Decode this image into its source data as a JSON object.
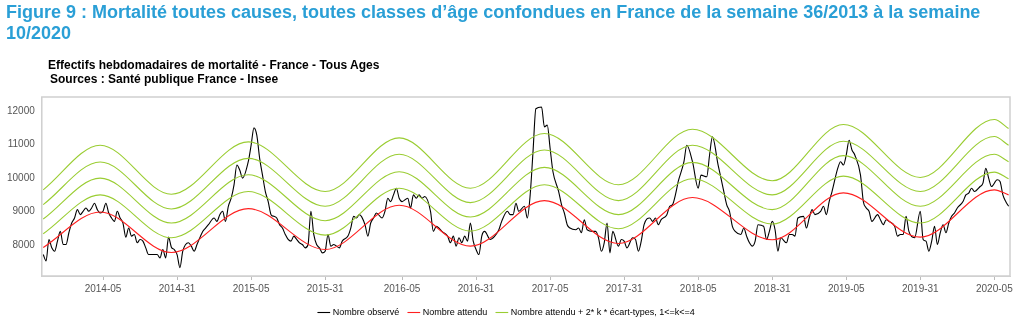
{
  "chart_data": {
    "type": "line",
    "title": "Figure 9 : Mortalité toutes causes, toutes classes d’âge confondues en France de la semaine 36/2013 à la semaine 10/2020",
    "subtitle": "Effectifs hebdomadaires de mortalité  - France - Tous Ages",
    "annotations": [
      "Sources : Santé publique France - Insee"
    ],
    "categories": [
      null,
      null,
      null,
      null,
      null,
      null,
      null,
      null,
      null,
      null,
      null,
      null,
      null,
      null,
      null,
      null,
      null,
      null,
      null,
      null,
      null,
      "2014-05",
      null,
      null,
      null,
      null,
      null,
      null,
      null,
      null,
      null,
      null,
      null,
      null,
      null,
      null,
      null,
      null,
      null,
      null,
      null,
      null,
      null,
      null,
      null,
      null,
      null,
      "2014-31",
      null,
      null,
      null,
      null,
      null,
      null,
      null,
      null,
      null,
      null,
      null,
      null,
      null,
      null,
      null,
      null,
      null,
      null,
      null,
      null,
      null,
      null,
      null,
      null,
      null,
      "2015-05",
      null,
      null,
      null,
      null,
      null,
      null,
      null,
      null,
      null,
      null,
      null,
      null,
      null,
      null,
      null,
      null,
      null,
      null,
      null,
      null,
      null,
      null,
      null,
      null,
      null,
      "2015-31",
      null,
      null,
      null,
      null,
      null,
      null,
      null,
      null,
      null,
      null,
      null,
      null,
      null,
      null,
      null,
      null,
      null,
      null,
      null,
      null,
      null,
      null,
      null,
      null,
      null,
      null,
      "2016-05",
      null,
      null,
      null,
      null,
      null,
      null,
      null,
      null,
      null,
      null,
      null,
      null,
      null,
      null,
      null,
      null,
      null,
      null,
      null,
      null,
      null,
      null,
      null,
      null,
      null,
      "2016-31",
      null,
      null,
      null,
      null,
      null,
      null,
      null,
      null,
      null,
      null,
      null,
      null,
      null,
      null,
      null,
      null,
      null,
      null,
      null,
      null,
      null,
      null,
      null,
      null,
      null,
      "2017-05",
      null,
      null,
      null,
      null,
      null,
      null,
      null,
      null,
      null,
      null,
      null,
      null,
      null,
      null,
      null,
      null,
      null,
      null,
      null,
      null,
      null,
      null,
      null,
      null,
      null,
      "2017-31",
      null,
      null,
      null,
      null,
      null,
      null,
      null,
      null,
      null,
      null,
      null,
      null,
      null,
      null,
      null,
      null,
      null,
      null,
      null,
      null,
      null,
      null,
      null,
      null,
      null,
      "2018-05",
      null,
      null,
      null,
      null,
      null,
      null,
      null,
      null,
      null,
      null,
      null,
      null,
      null,
      null,
      null,
      null,
      null,
      null,
      null,
      null,
      null,
      null,
      null,
      null,
      null,
      "2018-31",
      null,
      null,
      null,
      null,
      null,
      null,
      null,
      null,
      null,
      null,
      null,
      null,
      null,
      null,
      null,
      null,
      null,
      null,
      null,
      null,
      null,
      null,
      null,
      null,
      null,
      "2019-05",
      null,
      null,
      null,
      null,
      null,
      null,
      null,
      null,
      null,
      null,
      null,
      null,
      null,
      null,
      null,
      null,
      null,
      null,
      null,
      null,
      null,
      null,
      null,
      null,
      null,
      "2019-31",
      null,
      null,
      null,
      null,
      null,
      null,
      null,
      null,
      null,
      null,
      null,
      null,
      null,
      null,
      null,
      null,
      null,
      null,
      null,
      null,
      null,
      null,
      null,
      null,
      null,
      "2020-05",
      null,
      null,
      null,
      null,
      null
    ],
    "ylim": [
      7080,
      12420
    ],
    "yticks": [
      8000,
      9000,
      10000,
      11000,
      12000
    ],
    "grid": false,
    "legend": "bottom",
    "marker": "none",
    "line_style": "solid",
    "series": [
      {
        "name": "Nombre observé",
        "color": "#000000",
        "values": [
          7720,
          7530,
          8170,
          7920,
          7820,
          8120,
          8410,
          8020,
          8020,
          8370,
          8660,
          8810,
          9060,
          8910,
          9010,
          9110,
          9010,
          9110,
          9250,
          9060,
          8960,
          9010,
          9250,
          8960,
          8810,
          8710,
          9010,
          8810,
          8660,
          8240,
          8510,
          8270,
          8320,
          8070,
          8170,
          8120,
          7920,
          7720,
          null,
          7720,
          7720,
          7620,
          7870,
          7620,
          8240,
          7940,
          7870,
          7720,
          7330,
          7820,
          null,
          8070,
          7970,
          7820,
          8020,
          8220,
          8410,
          8510,
          8610,
          null,
          8810,
          8710,
          8910,
          9010,
          8710,
          9160,
          9400,
          9800,
          10390,
          10240,
          10000,
          null,
          10490,
          10980,
          11500,
          11280,
          10590,
          10090,
          9600,
          9300,
          8910,
          8860,
          8810,
          8610,
          8510,
          8320,
          8170,
          8120,
          8270,
          8170,
          8070,
          8020,
          7920,
          8020,
          9010,
          8320,
          8020,
          7920,
          7770,
          7820,
          8320,
          7970,
          8020,
          null,
          7920,
          8120,
          null,
          8270,
          8510,
          8860,
          8810,
          8910,
          null,
          8610,
          8270,
          8660,
          8810,
          8960,
          null,
          8810,
          9010,
          9400,
          9300,
          9500,
          9700,
          9400,
          9300,
          null,
          9400,
          9110,
          9500,
          9400,
          9500,
          9400,
          9450,
          null,
          9010,
          8410,
          8560,
          8510,
          8410,
          null,
          8270,
          8070,
          8270,
          7970,
          8220,
          8070,
          8270,
          8120,
          8660,
          8120,
          7870,
          7720,
          8270,
          8410,
          null,
          8170,
          8220,
          8320,
          8460,
          8710,
          null,
          9010,
          8910,
          8910,
          9250,
          9010,
          null,
          9160,
          8810,
          9500,
          10790,
          12070,
          null,
          12120,
          11530,
          11580,
          10890,
          10190,
          null,
          9600,
          9210,
          8960,
          8610,
          8510,
          null,
          8460,
          8510,
          8370,
          8760,
          8460,
          null,
          8410,
          8410,
          8220,
          7820,
          8070,
          8660,
          7770,
          8410,
          null,
          7970,
          8170,
          8120,
          7920,
          null,
          8220,
          8170,
          7820,
          8120,
          8610,
          null,
          8810,
          8710,
          8810,
          8610,
          8760,
          null,
          8910,
          9160,
          9210,
          9500,
          9900,
          null,
          10490,
          10980,
          null,
          10490,
          null,
          9700,
          10090,
          null,
          10040,
          10690,
          11230,
          null,
          10390,
          10000,
          9600,
          9210,
          9010,
          8560,
          8410,
          null,
          8320,
          8510,
          8270,
          8070,
          7970,
          8120,
          8610,
          null,
          8560,
          8170,
          8410,
          8710,
          8460,
          7820,
          8220,
          null,
          8070,
          8320,
          8320,
          8270,
          8810,
          null,
          8860,
          8510,
          8810,
          9060,
          8910,
          null,
          9010,
          9160,
          8910,
          9300,
          9600,
          null,
          10290,
          10490,
          10390,
          10690,
          11130,
          10840,
          10690,
          null,
          10090,
          9300,
          9110,
          9010,
          8710,
          null,
          8910,
          8760,
          8610,
          8760,
          8710,
          null,
          8560,
          8270,
          8320,
          8320,
          8860,
          8410,
          null,
          8220,
          null,
          9010,
          8170,
          8120,
          7820,
          8120,
          8560,
          8020,
          8370,
          8610,
          8370,
          8660,
          8860,
          8960,
          9110,
          null,
          9300,
          9500,
          9550,
          9700,
          9600,
          null,
          9750,
          9850,
          10290,
          10000,
          9750,
          null,
          9950,
          9900,
          9500,
          9300,
          9160
        ]
      },
      {
        "name": "Nombre attendu",
        "color": "#ff2020",
        "values": [
          7930,
          null,
          null,
          null,
          null,
          null,
          null,
          null,
          null,
          null,
          null,
          null,
          null,
          null,
          null,
          null,
          null,
          null,
          null,
          null,
          8990,
          null,
          null,
          null,
          null,
          null,
          null,
          null,
          null,
          null,
          null,
          null,
          null,
          null,
          null,
          null,
          null,
          null,
          null,
          null,
          null,
          null,
          null,
          null,
          null,
          7780,
          null,
          null,
          null,
          null,
          null,
          null,
          null,
          null,
          null,
          null,
          null,
          null,
          null,
          null,
          null,
          null,
          null,
          null,
          null,
          null,
          null,
          null,
          null,
          null,
          null,
          null,
          9090,
          null,
          null,
          null,
          null,
          null,
          null,
          null,
          null,
          null,
          null,
          null,
          null,
          null,
          null,
          null,
          null,
          null,
          null,
          null,
          null,
          null,
          null,
          null,
          null,
          null,
          null,
          7870,
          null,
          null,
          null,
          null,
          null,
          null,
          null,
          null,
          null,
          null,
          null,
          null,
          null,
          null,
          null,
          null,
          null,
          null,
          null,
          null,
          null,
          null,
          null,
          null,
          null,
          9190,
          null,
          null,
          null,
          null,
          null,
          null,
          null,
          null,
          null,
          null,
          null,
          null,
          null,
          null,
          null,
          null,
          null,
          null,
          null,
          null,
          null,
          null,
          null,
          null,
          7970,
          null,
          null,
          null,
          null,
          null,
          null,
          null,
          null,
          null,
          null,
          null,
          null,
          null,
          null,
          null,
          null,
          null,
          null,
          null,
          null,
          null,
          null,
          null,
          null,
          null,
          9330,
          null,
          null,
          null,
          null,
          null,
          null,
          null,
          null,
          null,
          null,
          null,
          null,
          null,
          null,
          null,
          null,
          null,
          null,
          null,
          null,
          null,
          null,
          null,
          null,
          null,
          8050,
          null,
          null,
          null,
          null,
          null,
          null,
          null,
          null,
          null,
          null,
          null,
          null,
          null,
          null,
          null,
          null,
          null,
          null,
          null,
          null,
          null,
          null,
          null,
          null,
          null,
          9420,
          null,
          null,
          null,
          null,
          null,
          null,
          null,
          null,
          null,
          null,
          null,
          null,
          null,
          null,
          null,
          null,
          null,
          null,
          null,
          null,
          null,
          null,
          null,
          null,
          null,
          null,
          null,
          8160,
          null,
          null,
          null,
          null,
          null,
          null,
          null,
          null,
          null,
          null,
          null,
          null,
          null,
          null,
          null,
          null,
          null,
          null,
          null,
          null,
          null,
          null,
          null,
          null,
          9560,
          null,
          null,
          null,
          null,
          null,
          null,
          null,
          null,
          null,
          null,
          null,
          null,
          null,
          null,
          null,
          null,
          null,
          null,
          null,
          null,
          null,
          null,
          null,
          null,
          null,
          null,
          8240,
          null,
          null,
          null,
          null,
          null,
          null,
          null,
          null,
          null,
          null,
          null,
          null,
          null,
          null,
          null,
          null,
          null,
          null,
          null,
          null,
          null,
          null,
          null,
          null,
          null,
          9650,
          null,
          null,
          null,
          null,
          9500
        ]
      },
      {
        "name": "Nombre attendu + 2* k * écart-types, 1<=k<=4",
        "color": "#9acd32",
        "values": [
          8340,
          null,
          null,
          null,
          null,
          null,
          null,
          null,
          null,
          null,
          null,
          null,
          null,
          null,
          null,
          null,
          null,
          null,
          null,
          null,
          9500,
          null,
          null,
          null,
          null,
          null,
          null,
          null,
          null,
          null,
          null,
          null,
          null,
          null,
          null,
          null,
          null,
          null,
          null,
          null,
          null,
          null,
          null,
          null,
          null,
          8220,
          null,
          null,
          null,
          null,
          null,
          null,
          null,
          null,
          null,
          null,
          null,
          null,
          null,
          null,
          null,
          null,
          null,
          null,
          null,
          null,
          null,
          null,
          null,
          null,
          null,
          null,
          9600,
          null,
          null,
          null,
          null,
          null,
          null,
          null,
          null,
          null,
          null,
          null,
          null,
          null,
          null,
          null,
          null,
          null,
          null,
          null,
          null,
          null,
          null,
          null,
          null,
          null,
          null,
          8300,
          null,
          null,
          null,
          null,
          null,
          null,
          null,
          null,
          null,
          null,
          null,
          null,
          null,
          null,
          null,
          null,
          null,
          null,
          null,
          null,
          null,
          null,
          null,
          null,
          null,
          9700,
          null,
          null,
          null,
          null,
          null,
          null,
          null,
          null,
          null,
          null,
          null,
          null,
          null,
          null,
          null,
          null,
          null,
          null,
          null,
          null,
          null,
          null,
          null,
          null,
          8420,
          null,
          null,
          null,
          null,
          null,
          null,
          null,
          null,
          null,
          null,
          null,
          null,
          null,
          null,
          null,
          null,
          null,
          null,
          null,
          null,
          null,
          null,
          null,
          null,
          null,
          9800,
          null,
          null,
          null,
          null,
          null,
          null,
          null,
          null,
          null,
          null,
          null,
          null,
          null,
          null,
          null,
          null,
          null,
          null,
          null,
          null,
          null,
          null,
          null,
          null,
          null,
          8490,
          null,
          null,
          null,
          null,
          null,
          null,
          null,
          null,
          null,
          null,
          null,
          null,
          null,
          null,
          null,
          null,
          null,
          null,
          null,
          null,
          null,
          null,
          null,
          null,
          null,
          9980,
          null,
          null,
          null,
          null,
          null,
          null,
          null,
          null,
          null,
          null,
          null,
          null,
          null,
          null,
          null,
          null,
          null,
          null,
          null,
          null,
          null,
          null,
          null,
          null,
          null,
          null,
          null,
          8630,
          null,
          null,
          null,
          null,
          null,
          null,
          null,
          null,
          null,
          null,
          null,
          null,
          null,
          null,
          null,
          null,
          null,
          null,
          null,
          null,
          null,
          null,
          null,
          null,
          10060,
          null,
          null,
          null,
          null,
          null,
          null,
          null,
          null,
          null,
          null,
          null,
          null,
          null,
          null,
          null,
          null,
          null,
          null,
          null,
          null,
          null,
          null,
          null,
          null,
          null,
          null,
          8660,
          null,
          null,
          null,
          null,
          null,
          null,
          null,
          null,
          null,
          null,
          null,
          null,
          null,
          null,
          null,
          null,
          null,
          null,
          null,
          null,
          null,
          null,
          null,
          null,
          null,
          10180,
          null,
          null,
          null,
          null,
          9980
        ]
      },
      {
        "color": "#9acd32",
        "values": [
          8780,
          null,
          null,
          null,
          null,
          null,
          null,
          null,
          null,
          null,
          null,
          null,
          null,
          null,
          null,
          null,
          null,
          null,
          null,
          null,
          10000,
          null,
          null,
          null,
          null,
          null,
          null,
          null,
          null,
          null,
          null,
          null,
          null,
          null,
          null,
          null,
          null,
          null,
          null,
          null,
          null,
          null,
          null,
          null,
          null,
          8660,
          null,
          null,
          null,
          null,
          null,
          null,
          null,
          null,
          null,
          null,
          null,
          null,
          null,
          null,
          null,
          null,
          null,
          null,
          null,
          null,
          null,
          null,
          null,
          null,
          null,
          null,
          10100,
          null,
          null,
          null,
          null,
          null,
          null,
          null,
          null,
          null,
          null,
          null,
          null,
          null,
          null,
          null,
          null,
          null,
          null,
          null,
          null,
          null,
          null,
          null,
          null,
          null,
          null,
          8730,
          null,
          null,
          null,
          null,
          null,
          null,
          null,
          null,
          null,
          null,
          null,
          null,
          null,
          null,
          null,
          null,
          null,
          null,
          null,
          null,
          null,
          null,
          null,
          null,
          null,
          10190,
          null,
          null,
          null,
          null,
          null,
          null,
          null,
          null,
          null,
          null,
          null,
          null,
          null,
          null,
          null,
          null,
          null,
          null,
          null,
          null,
          null,
          null,
          null,
          null,
          8840,
          null,
          null,
          null,
          null,
          null,
          null,
          null,
          null,
          null,
          null,
          null,
          null,
          null,
          null,
          null,
          null,
          null,
          null,
          null,
          null,
          null,
          null,
          null,
          null,
          null,
          10320,
          null,
          null,
          null,
          null,
          null,
          null,
          null,
          null,
          null,
          null,
          null,
          null,
          null,
          null,
          null,
          null,
          null,
          null,
          null,
          null,
          null,
          null,
          null,
          null,
          null,
          8910,
          null,
          null,
          null,
          null,
          null,
          null,
          null,
          null,
          null,
          null,
          null,
          null,
          null,
          null,
          null,
          null,
          null,
          null,
          null,
          null,
          null,
          null,
          null,
          null,
          null,
          10470,
          null,
          null,
          null,
          null,
          null,
          null,
          null,
          null,
          null,
          null,
          null,
          null,
          null,
          null,
          null,
          null,
          null,
          null,
          null,
          null,
          null,
          null,
          null,
          null,
          null,
          null,
          null,
          9060,
          null,
          null,
          null,
          null,
          null,
          null,
          null,
          null,
          null,
          null,
          null,
          null,
          null,
          null,
          null,
          null,
          null,
          null,
          null,
          null,
          null,
          null,
          null,
          null,
          10670,
          null,
          null,
          null,
          null,
          null,
          null,
          null,
          null,
          null,
          null,
          null,
          null,
          null,
          null,
          null,
          null,
          null,
          null,
          null,
          null,
          null,
          null,
          null,
          null,
          null,
          null,
          9160,
          null,
          null,
          null,
          null,
          null,
          null,
          null,
          null,
          null,
          null,
          null,
          null,
          null,
          null,
          null,
          null,
          null,
          null,
          null,
          null,
          null,
          null,
          null,
          null,
          null,
          10710,
          null,
          null,
          null,
          null,
          10490
        ]
      },
      {
        "color": "#9acd32",
        "values": [
          9210,
          null,
          null,
          null,
          null,
          null,
          null,
          null,
          null,
          null,
          null,
          null,
          null,
          null,
          null,
          null,
          null,
          null,
          null,
          null,
          10480,
          null,
          null,
          null,
          null,
          null,
          null,
          null,
          null,
          null,
          null,
          null,
          null,
          null,
          null,
          null,
          null,
          null,
          null,
          null,
          null,
          null,
          null,
          null,
          null,
          9080,
          null,
          null,
          null,
          null,
          null,
          null,
          null,
          null,
          null,
          null,
          null,
          null,
          null,
          null,
          null,
          null,
          null,
          null,
          null,
          null,
          null,
          null,
          null,
          null,
          null,
          null,
          10590,
          null,
          null,
          null,
          null,
          null,
          null,
          null,
          null,
          null,
          null,
          null,
          null,
          null,
          null,
          null,
          null,
          null,
          null,
          null,
          null,
          null,
          null,
          null,
          null,
          null,
          null,
          9160,
          null,
          null,
          null,
          null,
          null,
          null,
          null,
          null,
          null,
          null,
          null,
          null,
          null,
          null,
          null,
          null,
          null,
          null,
          null,
          null,
          null,
          null,
          null,
          null,
          null,
          10710,
          null,
          null,
          null,
          null,
          null,
          null,
          null,
          null,
          null,
          null,
          null,
          null,
          null,
          null,
          null,
          null,
          null,
          null,
          null,
          null,
          null,
          null,
          null,
          null,
          9270,
          null,
          null,
          null,
          null,
          null,
          null,
          null,
          null,
          null,
          null,
          null,
          null,
          null,
          null,
          null,
          null,
          null,
          null,
          null,
          null,
          null,
          null,
          null,
          null,
          null,
          10840,
          null,
          null,
          null,
          null,
          null,
          null,
          null,
          null,
          null,
          null,
          null,
          null,
          null,
          null,
          null,
          null,
          null,
          null,
          null,
          null,
          null,
          null,
          null,
          null,
          null,
          9330,
          null,
          null,
          null,
          null,
          null,
          null,
          null,
          null,
          null,
          null,
          null,
          null,
          null,
          null,
          null,
          null,
          null,
          null,
          null,
          null,
          null,
          null,
          null,
          null,
          null,
          10980,
          null,
          null,
          null,
          null,
          null,
          null,
          null,
          null,
          null,
          null,
          null,
          null,
          null,
          null,
          null,
          null,
          null,
          null,
          null,
          null,
          null,
          null,
          null,
          null,
          null,
          null,
          null,
          9500,
          null,
          null,
          null,
          null,
          null,
          null,
          null,
          null,
          null,
          null,
          null,
          null,
          null,
          null,
          null,
          null,
          null,
          null,
          null,
          null,
          null,
          null,
          null,
          null,
          11100,
          null,
          null,
          null,
          null,
          null,
          null,
          null,
          null,
          null,
          null,
          null,
          null,
          null,
          null,
          null,
          null,
          null,
          null,
          null,
          null,
          null,
          null,
          null,
          null,
          null,
          null,
          9600,
          null,
          null,
          null,
          null,
          null,
          null,
          null,
          null,
          null,
          null,
          null,
          null,
          null,
          null,
          null,
          null,
          null,
          null,
          null,
          null,
          null,
          null,
          null,
          null,
          null,
          11240,
          null,
          null,
          null,
          null,
          10980
        ]
      },
      {
        "color": "#9acd32",
        "values": [
          9650,
          null,
          null,
          null,
          null,
          null,
          null,
          null,
          null,
          null,
          null,
          null,
          null,
          null,
          null,
          null,
          null,
          null,
          null,
          null,
          10980,
          null,
          null,
          null,
          null,
          null,
          null,
          null,
          null,
          null,
          null,
          null,
          null,
          null,
          null,
          null,
          null,
          null,
          null,
          null,
          null,
          null,
          null,
          null,
          null,
          9520,
          null,
          null,
          null,
          null,
          null,
          null,
          null,
          null,
          null,
          null,
          null,
          null,
          null,
          null,
          null,
          null,
          null,
          null,
          null,
          null,
          null,
          null,
          null,
          null,
          null,
          null,
          11080,
          null,
          null,
          null,
          null,
          null,
          null,
          null,
          null,
          null,
          null,
          null,
          null,
          null,
          null,
          null,
          null,
          null,
          null,
          null,
          null,
          null,
          null,
          null,
          null,
          null,
          null,
          9600,
          null,
          null,
          null,
          null,
          null,
          null,
          null,
          null,
          null,
          null,
          null,
          null,
          null,
          null,
          null,
          null,
          null,
          null,
          null,
          null,
          null,
          null,
          null,
          null,
          null,
          11200,
          null,
          null,
          null,
          null,
          null,
          null,
          null,
          null,
          null,
          null,
          null,
          null,
          null,
          null,
          null,
          null,
          null,
          null,
          null,
          null,
          null,
          null,
          null,
          null,
          9700,
          null,
          null,
          null,
          null,
          null,
          null,
          null,
          null,
          null,
          null,
          null,
          null,
          null,
          null,
          null,
          null,
          null,
          null,
          null,
          null,
          null,
          null,
          null,
          null,
          null,
          11330,
          null,
          null,
          null,
          null,
          null,
          null,
          null,
          null,
          null,
          null,
          null,
          null,
          null,
          null,
          null,
          null,
          null,
          null,
          null,
          null,
          null,
          null,
          null,
          null,
          null,
          9800,
          null,
          null,
          null,
          null,
          null,
          null,
          null,
          null,
          null,
          null,
          null,
          null,
          null,
          null,
          null,
          null,
          null,
          null,
          null,
          null,
          null,
          null,
          null,
          null,
          null,
          11460,
          null,
          null,
          null,
          null,
          null,
          null,
          null,
          null,
          null,
          null,
          null,
          null,
          null,
          null,
          null,
          null,
          null,
          null,
          null,
          null,
          null,
          null,
          null,
          null,
          null,
          null,
          null,
          9920,
          null,
          null,
          null,
          null,
          null,
          null,
          null,
          null,
          null,
          null,
          null,
          null,
          null,
          null,
          null,
          null,
          null,
          null,
          null,
          null,
          null,
          null,
          null,
          null,
          11600,
          null,
          null,
          null,
          null,
          null,
          null,
          null,
          null,
          null,
          null,
          null,
          null,
          null,
          null,
          null,
          null,
          null,
          null,
          null,
          null,
          null,
          null,
          null,
          null,
          null,
          null,
          10020,
          null,
          null,
          null,
          null,
          null,
          null,
          null,
          null,
          null,
          null,
          null,
          null,
          null,
          null,
          null,
          null,
          null,
          null,
          null,
          null,
          null,
          null,
          null,
          null,
          null,
          11750,
          null,
          null,
          null,
          null,
          11480
        ]
      }
    ]
  }
}
